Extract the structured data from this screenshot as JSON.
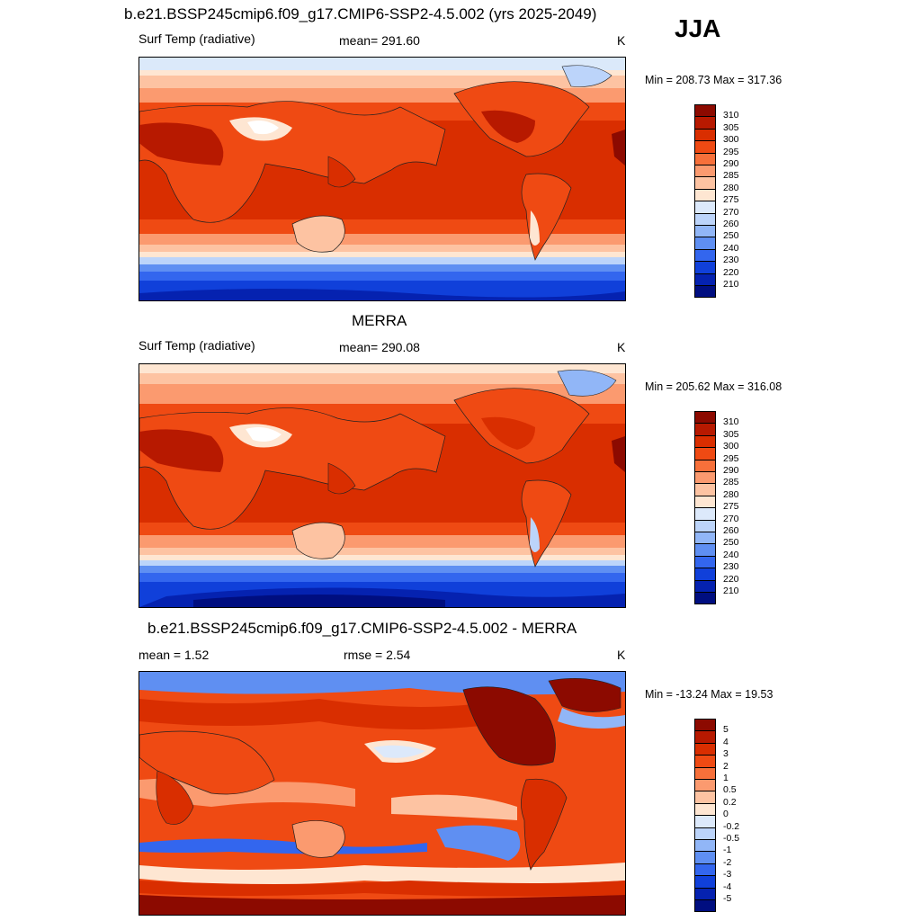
{
  "season": "JJA",
  "panels": [
    {
      "title": "b.e21.BSSP245cmip6.f09_g17.CMIP6-SSP2-4.5.002 (yrs 2025-2049)",
      "left_label": "Surf Temp (radiative)",
      "center_label": "mean= 291.60",
      "units": "K",
      "minmax": "Min = 208.73 Max = 317.36"
    },
    {
      "title": "MERRA",
      "left_label": "Surf Temp (radiative)",
      "center_label": "mean= 290.08",
      "units": "K",
      "minmax": "Min = 205.62 Max = 316.08"
    },
    {
      "title": "b.e21.BSSP245cmip6.f09_g17.CMIP6-SSP2-4.5.002 - MERRA",
      "left_label": "mean =   1.52",
      "center_label": "rmse =   2.54",
      "units": "K",
      "minmax": "Min = -13.24 Max =  19.53"
    }
  ],
  "colorbars": {
    "absolute": {
      "ticks": [
        "310",
        "305",
        "300",
        "295",
        "290",
        "285",
        "280",
        "275",
        "270",
        "260",
        "250",
        "240",
        "230",
        "220",
        "210"
      ],
      "colors": [
        "#8c0a00",
        "#b71900",
        "#d92e00",
        "#ef4a13",
        "#f7703a",
        "#fb9a6f",
        "#fdc3a2",
        "#fee6d2",
        "#dce9fb",
        "#bcd4fa",
        "#91b6f7",
        "#5f8ff2",
        "#3366ee",
        "#1040da",
        "#0522b0",
        "#000e80"
      ]
    },
    "difference": {
      "ticks": [
        "5",
        "4",
        "3",
        "2",
        "1",
        "0.5",
        "0.2",
        "0",
        "-0.2",
        "-0.5",
        "-1",
        "-2",
        "-3",
        "-4",
        "-5"
      ],
      "colors": [
        "#8c0a00",
        "#b71900",
        "#d92e00",
        "#ef4a13",
        "#f7703a",
        "#fb9a6f",
        "#fdc3a2",
        "#fee6d2",
        "#dce9fb",
        "#bcd4fa",
        "#91b6f7",
        "#5f8ff2",
        "#3366ee",
        "#1040da",
        "#0522b0",
        "#000e80"
      ]
    }
  }
}
